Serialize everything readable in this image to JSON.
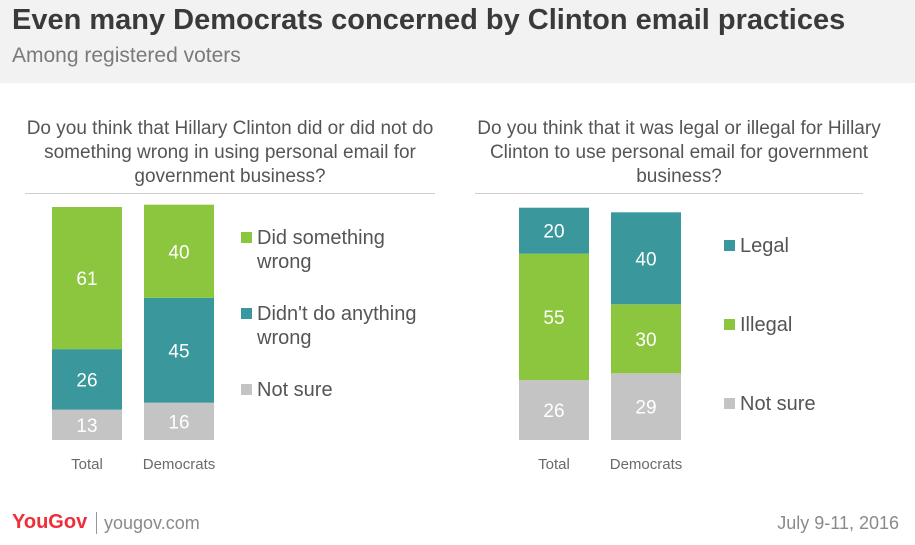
{
  "header": {
    "title": "Even many Democrats concerned by Clinton email practices",
    "subtitle": "Among registered voters"
  },
  "colors": {
    "green": "#8cc63f",
    "teal": "#3a989c",
    "gray": "#c4c4c4",
    "label": "#ffffff",
    "text": "#555555",
    "axis_text": "#6a6a6a"
  },
  "chart_data": [
    {
      "type": "bar",
      "stacked": true,
      "title": "Do you think that Hillary Clinton did or did not do something wrong in using personal email for government business?",
      "categories": [
        "Total",
        "Democrats"
      ],
      "series": [
        {
          "name": "Did something wrong",
          "values": [
            61,
            40
          ],
          "color": "#8cc63f"
        },
        {
          "name": "Didn't do anything wrong",
          "values": [
            26,
            45
          ],
          "color": "#3a989c"
        },
        {
          "name": "Not sure",
          "values": [
            13,
            16
          ],
          "color": "#c4c4c4"
        }
      ],
      "legend_position": "right"
    },
    {
      "type": "bar",
      "stacked": true,
      "title": "Do you think that it was legal or illegal for Hillary Clinton to use personal email for government business?",
      "categories": [
        "Total",
        "Democrats"
      ],
      "series": [
        {
          "name": "Legal",
          "values": [
            20,
            40
          ],
          "color": "#3a989c"
        },
        {
          "name": "Illegal",
          "values": [
            55,
            30
          ],
          "color": "#8cc63f"
        },
        {
          "name": "Not sure",
          "values": [
            26,
            29
          ],
          "color": "#c4c4c4"
        }
      ],
      "legend_position": "right"
    }
  ],
  "footer": {
    "brand": "YouGov",
    "site": "yougov.com",
    "date": "July 9-11, 2016"
  }
}
